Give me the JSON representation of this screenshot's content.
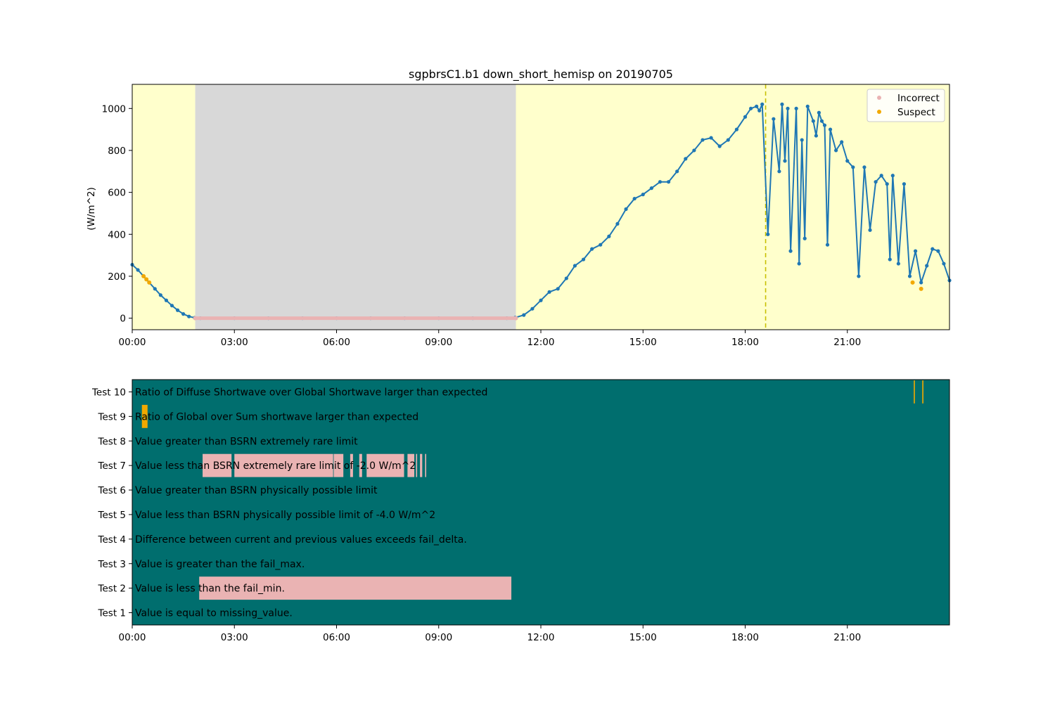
{
  "chart_data": [
    {
      "type": "line",
      "title": "sgpbrsC1.b1 down_short_hemisp on 20190705",
      "ylabel": "(W/m^2)",
      "xlabel": "",
      "xlim": [
        "00:00",
        "24:00"
      ],
      "ylim": [
        -55,
        1115
      ],
      "x_ticks": [
        "00:00",
        "03:00",
        "06:00",
        "09:00",
        "12:00",
        "15:00",
        "18:00",
        "21:00"
      ],
      "y_ticks": [
        0,
        200,
        400,
        600,
        800,
        1000
      ],
      "grid": false,
      "legend": {
        "placement": "top-right",
        "entries": [
          {
            "label": "Incorrect",
            "color": "#eab3b3"
          },
          {
            "label": "Suspect",
            "color": "#f2a900"
          }
        ]
      },
      "background_spans": [
        {
          "start": "00:00",
          "end": "01:51",
          "state": "suspect",
          "color": "#ffffcc"
        },
        {
          "start": "01:51",
          "end": "11:16",
          "state": "incorrect",
          "color": "#d8d8d8"
        },
        {
          "start": "11:16",
          "end": "24:00",
          "state": "suspect",
          "color": "#ffffcc"
        }
      ],
      "reference_line": {
        "x": "18:36",
        "color": "#c8c000",
        "style": "dashed"
      },
      "series": [
        {
          "color": "#1f77b4",
          "x": [
            "00:00",
            "00:10",
            "00:20",
            "00:30",
            "00:40",
            "00:50",
            "01:00",
            "01:10",
            "01:20",
            "01:30",
            "01:40",
            "01:50",
            "02:00",
            "03:00",
            "04:00",
            "05:00",
            "06:00",
            "07:00",
            "08:00",
            "09:00",
            "10:00",
            "11:00",
            "11:15",
            "11:30",
            "11:45",
            "12:00",
            "12:15",
            "12:30",
            "12:45",
            "13:00",
            "13:15",
            "13:30",
            "13:45",
            "14:00",
            "14:15",
            "14:30",
            "14:45",
            "15:00",
            "15:15",
            "15:30",
            "15:45",
            "16:00",
            "16:15",
            "16:30",
            "16:45",
            "17:00",
            "17:15",
            "17:30",
            "17:45",
            "18:00",
            "18:10",
            "18:20",
            "18:25",
            "18:30",
            "18:40",
            "18:50",
            "19:00",
            "19:05",
            "19:10",
            "19:15",
            "19:20",
            "19:30",
            "19:35",
            "19:40",
            "19:45",
            "19:50",
            "20:00",
            "20:05",
            "20:10",
            "20:15",
            "20:20",
            "20:25",
            "20:30",
            "20:40",
            "20:50",
            "21:00",
            "21:10",
            "21:20",
            "21:30",
            "21:40",
            "21:50",
            "22:00",
            "22:10",
            "22:15",
            "22:20",
            "22:30",
            "22:40",
            "22:50",
            "23:00",
            "23:10",
            "23:20",
            "23:30",
            "23:40",
            "23:50",
            "24:00"
          ],
          "values": [
            255,
            230,
            200,
            170,
            140,
            110,
            85,
            60,
            38,
            20,
            8,
            2,
            0,
            0,
            0,
            0,
            0,
            0,
            0,
            0,
            0,
            0,
            3,
            15,
            45,
            85,
            125,
            140,
            190,
            250,
            280,
            330,
            350,
            390,
            450,
            520,
            570,
            590,
            620,
            650,
            650,
            700,
            760,
            800,
            850,
            860,
            820,
            850,
            900,
            960,
            1000,
            1010,
            990,
            1020,
            400,
            950,
            700,
            1020,
            750,
            1000,
            320,
            1000,
            260,
            850,
            380,
            1010,
            940,
            870,
            980,
            940,
            920,
            350,
            900,
            800,
            840,
            750,
            720,
            200,
            720,
            420,
            650,
            680,
            640,
            280,
            680,
            260,
            640,
            200,
            320,
            170,
            250,
            330,
            320,
            260,
            180
          ]
        }
      ],
      "flag_points": [
        {
          "x": "00:20",
          "value": 200,
          "flag": "Suspect"
        },
        {
          "x": "00:25",
          "value": 185,
          "flag": "Suspect"
        },
        {
          "x": "00:30",
          "value": 170,
          "flag": "Suspect"
        },
        {
          "x": "22:55",
          "value": 170,
          "flag": "Suspect"
        },
        {
          "x": "23:10",
          "value": 140,
          "flag": "Suspect"
        },
        {
          "x": "01:51",
          "value": 0,
          "flag": "Incorrect"
        },
        {
          "x": "11:16",
          "value": 0,
          "flag": "Incorrect"
        }
      ]
    },
    {
      "type": "timeline",
      "title": "",
      "xlim": [
        "00:00",
        "24:00"
      ],
      "x_ticks": [
        "00:00",
        "03:00",
        "06:00",
        "09:00",
        "12:00",
        "15:00",
        "18:00",
        "21:00"
      ],
      "background_color": "#006e6e",
      "rows": [
        {
          "name": "Test 10",
          "description": "Ratio of Diffuse Shortwave over Global Shortwave larger than expected",
          "spans": [
            {
              "start": "22:57",
              "end": "22:59",
              "color": "#f2a900"
            },
            {
              "start": "23:12",
              "end": "23:14",
              "color": "#f2a900"
            }
          ]
        },
        {
          "name": "Test 9",
          "description": "Ratio of Global over Sum shortwave larger than expected",
          "spans": [
            {
              "start": "00:17",
              "end": "00:27",
              "color": "#f2a900"
            }
          ]
        },
        {
          "name": "Test 8",
          "description": "Value greater than BSRN extremely rare limit",
          "spans": []
        },
        {
          "name": "Test 7",
          "description": "Value less than BSRN extremely rare limit of -2.0 W/m^2",
          "spans": [
            {
              "start": "02:04",
              "end": "02:55",
              "color": "#eab3b3"
            },
            {
              "start": "03:00",
              "end": "05:54",
              "color": "#eab3b3"
            },
            {
              "start": "05:55",
              "end": "06:12",
              "color": "#eab3b3"
            },
            {
              "start": "06:24",
              "end": "06:29",
              "color": "#eab3b3"
            },
            {
              "start": "06:40",
              "end": "06:45",
              "color": "#eab3b3"
            },
            {
              "start": "06:53",
              "end": "07:59",
              "color": "#eab3b3"
            },
            {
              "start": "08:05",
              "end": "08:17",
              "color": "#eab3b3"
            },
            {
              "start": "08:20",
              "end": "08:22",
              "color": "#eab3b3"
            },
            {
              "start": "08:27",
              "end": "08:31",
              "color": "#eab3b3"
            },
            {
              "start": "08:36",
              "end": "08:38",
              "color": "#eab3b3"
            }
          ]
        },
        {
          "name": "Test 6",
          "description": "Value greater than BSRN physically possible limit",
          "spans": []
        },
        {
          "name": "Test 5",
          "description": "Value less than BSRN physically possible limit of -4.0 W/m^2",
          "spans": []
        },
        {
          "name": "Test 4",
          "description": "Difference between current and previous values exceeds fail_delta.",
          "spans": []
        },
        {
          "name": "Test 3",
          "description": "Value is greater than the fail_max.",
          "spans": []
        },
        {
          "name": "Test 2",
          "description": "Value is less than the fail_min.",
          "spans": [
            {
              "start": "01:58",
              "end": "11:08",
              "color": "#eab3b3"
            }
          ]
        },
        {
          "name": "Test 1",
          "description": "Value is equal to missing_value.",
          "spans": []
        }
      ]
    }
  ]
}
